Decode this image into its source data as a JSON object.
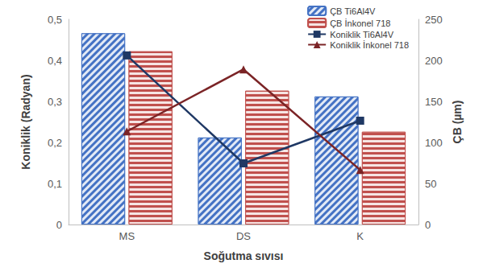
{
  "chart_data": {
    "type": "bar",
    "categories": [
      "MS",
      "DS",
      "K"
    ],
    "xlabel": "Soğutma sıvısı",
    "ylabel": "Koniklik (Radyan)",
    "y2label": "ÇB (µm)",
    "ylim": [
      0,
      0.5
    ],
    "yticks": [
      0,
      {
        "value": 0.1,
        "label": "0,1"
      },
      {
        "value": 0.2,
        "label": "0,2"
      },
      {
        "value": 0.3,
        "label": "0,3"
      },
      {
        "value": 0.4,
        "label": "0,4"
      },
      {
        "value": 0.5,
        "label": "0,5"
      }
    ],
    "y2lim": [
      0,
      250
    ],
    "y2ticks": [
      0,
      50,
      100,
      150,
      200,
      250
    ],
    "grid": false,
    "legend": "upper right",
    "series": [
      {
        "name": "ÇB Ti6Al4V",
        "type": "bar",
        "axis": "y2",
        "color": "#4472c4",
        "values": [
          233,
          106,
          156
        ]
      },
      {
        "name": "ÇB İnkonel 718",
        "type": "bar",
        "axis": "y2",
        "color": "#c0504d",
        "values": [
          211,
          163,
          113
        ]
      },
      {
        "name": "Koniklik Ti6Al4V",
        "type": "line",
        "color": "#1f3864",
        "marker": "square",
        "values": [
          0.412,
          0.149,
          0.253
        ]
      },
      {
        "name": "Koniklik İnkonel 718",
        "type": "line",
        "color": "#7b2426",
        "marker": "triangle",
        "values": [
          0.227,
          0.378,
          0.133
        ]
      }
    ]
  }
}
